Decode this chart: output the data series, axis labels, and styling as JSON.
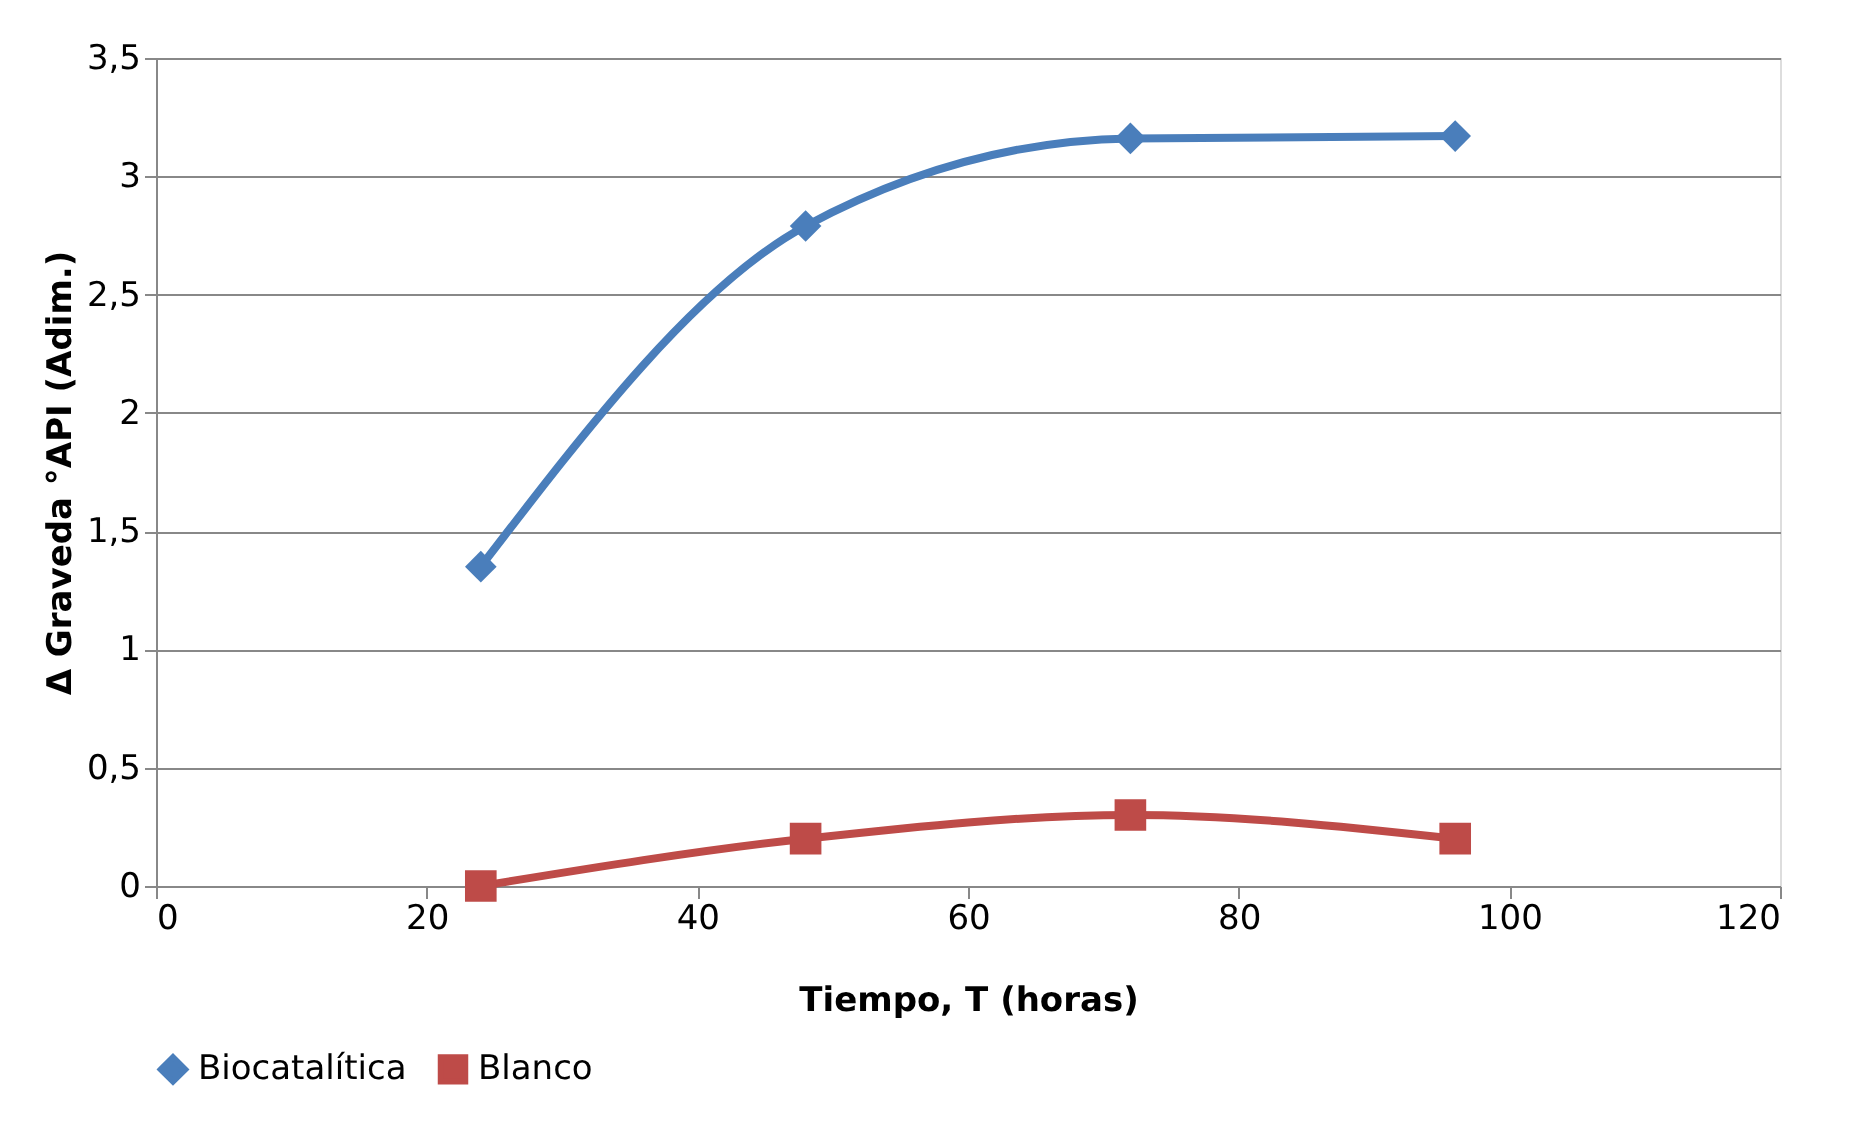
{
  "chart_data": {
    "type": "line",
    "xlabel": "Tiempo, T (horas)",
    "ylabel": "Δ Graveda °API (Adim.)",
    "series": [
      {
        "name": "Biocatalítica",
        "color": "#4a7ebb",
        "marker": "diamond",
        "x": [
          24,
          48,
          72,
          96
        ],
        "values": [
          1.35,
          2.79,
          3.16,
          3.17
        ]
      },
      {
        "name": "Blanco",
        "color": "#be4b48",
        "marker": "square",
        "x": [
          24,
          48,
          72,
          96
        ],
        "values": [
          0,
          0.2,
          0.3,
          0.2
        ]
      }
    ],
    "xlim": [
      0,
      120
    ],
    "xticks": [
      0,
      20,
      40,
      60,
      80,
      100,
      120
    ],
    "ylim": [
      0,
      3.5
    ],
    "yticks": [
      0,
      {
        "value": 0.5,
        "label": "0,5"
      },
      1,
      {
        "value": 1.5,
        "label": "1,5"
      },
      2,
      {
        "value": 2.5,
        "label": "2,5"
      },
      3,
      {
        "value": 3.5,
        "label": "3,5"
      }
    ],
    "grid": "y",
    "legend": "bottom",
    "line_style": "solid"
  }
}
